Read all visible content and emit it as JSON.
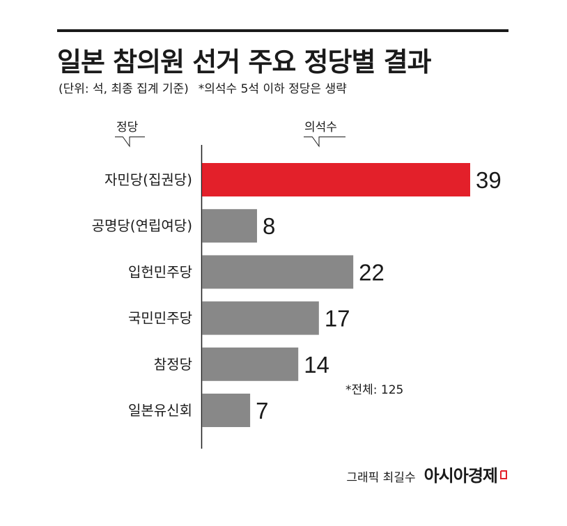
{
  "header": {
    "title": "일본 참의원 선거 주요 정당별 결과",
    "unit_note": "(단위: 석, 최종 집계 기준)",
    "omit_note": "*의석수 5석 이하 정당은 생략"
  },
  "columns": {
    "party": "정당",
    "seats": "의석수"
  },
  "colors": {
    "highlight": "#e3202a",
    "bar": "#888888",
    "text": "#1a1a1a"
  },
  "chart_data": {
    "type": "bar",
    "orientation": "horizontal",
    "categories": [
      "자민당(집권당)",
      "공명당(연립여당)",
      "입헌민주당",
      "국민민주당",
      "참정당",
      "일본유신회"
    ],
    "values": [
      39,
      8,
      22,
      17,
      14,
      7
    ],
    "highlight_index": 0,
    "title": "일본 참의원 선거 주요 정당별 결과",
    "xlabel": "의석수",
    "ylabel": "정당",
    "xlim": [
      0,
      39
    ],
    "grid": false,
    "legend": "none"
  },
  "footnote": "*전체: 125",
  "credit": {
    "graphic": "그래픽 최길수",
    "brand": "아시아경제"
  }
}
